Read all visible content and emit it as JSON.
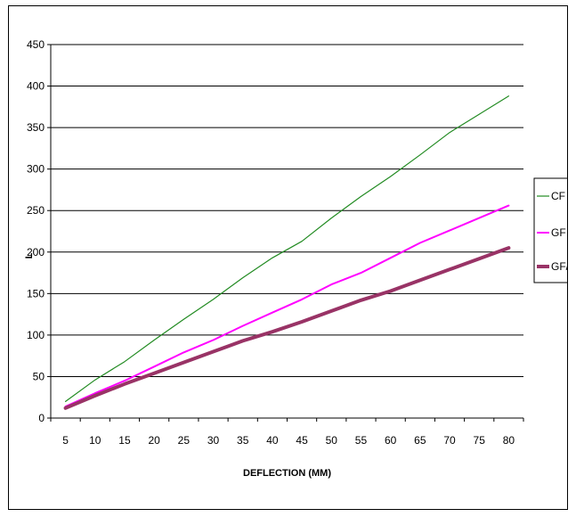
{
  "chart_data": {
    "type": "line",
    "title": "",
    "xlabel": "DEFLECTION (MM)",
    "ylabel": "L",
    "x": [
      5,
      10,
      15,
      20,
      25,
      30,
      35,
      40,
      45,
      50,
      55,
      60,
      65,
      70,
      75,
      80
    ],
    "ylim": [
      0,
      450
    ],
    "ystep": 50,
    "grid": true,
    "legend_position": "right",
    "series": [
      {
        "name": "CF",
        "color": "#228B22",
        "values": [
          20,
          46,
          68,
          94,
          119,
          143,
          169,
          193,
          213,
          241,
          267,
          291,
          317,
          344,
          366,
          388
        ]
      },
      {
        "name": "GF",
        "color": "#FF00FF",
        "values": [
          14,
          30,
          45,
          62,
          79,
          94,
          111,
          127,
          143,
          161,
          175,
          193,
          211,
          226,
          241,
          256
        ]
      },
      {
        "name": "GF/CF",
        "color": "#993366",
        "values": [
          12,
          27,
          41,
          54,
          67,
          80,
          93,
          104,
          116,
          129,
          142,
          153,
          166,
          179,
          192,
          205
        ]
      }
    ]
  }
}
